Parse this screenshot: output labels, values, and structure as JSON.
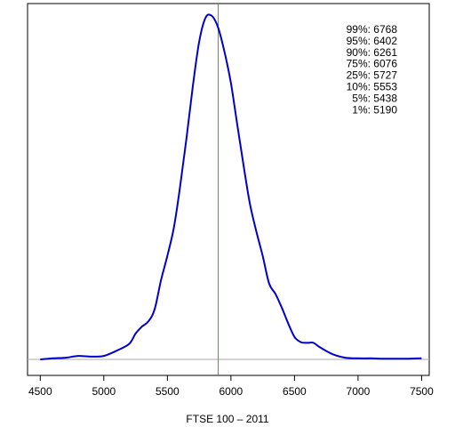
{
  "chart_data": {
    "type": "line",
    "xlabel": "FTSE 100 – 2011",
    "ylabel": "",
    "title": "",
    "xlim": [
      4400,
      7560
    ],
    "ylim": [
      0,
      1.0
    ],
    "x_ticks": [
      4500,
      5000,
      5500,
      6000,
      6500,
      7000,
      7500
    ],
    "x_tick_labels": [
      "4500",
      "5000",
      "5500",
      "6000",
      "6500",
      "7000",
      "7500"
    ],
    "vline": {
      "x": 5900,
      "color": "#00cc00"
    },
    "baseline": {
      "y": 0,
      "color": "#aaaaaa"
    },
    "series": [
      {
        "color": "#0000cc",
        "x": [
          4500,
          4600,
          4700,
          4800,
          4900,
          5000,
          5100,
          5200,
          5250,
          5300,
          5350,
          5400,
          5450,
          5500,
          5550,
          5600,
          5650,
          5700,
          5750,
          5800,
          5850,
          5900,
          5950,
          6000,
          6050,
          6100,
          6150,
          6200,
          6250,
          6300,
          6350,
          6400,
          6450,
          6500,
          6550,
          6600,
          6650,
          6700,
          6800,
          6900,
          7000,
          7100,
          7200,
          7300,
          7400,
          7500
        ],
        "y": [
          0.0,
          0.003,
          0.005,
          0.01,
          0.008,
          0.01,
          0.025,
          0.045,
          0.075,
          0.095,
          0.11,
          0.145,
          0.23,
          0.3,
          0.38,
          0.5,
          0.64,
          0.79,
          0.92,
          0.99,
          0.995,
          0.96,
          0.89,
          0.8,
          0.68,
          0.56,
          0.45,
          0.37,
          0.3,
          0.22,
          0.19,
          0.15,
          0.105,
          0.065,
          0.05,
          0.048,
          0.048,
          0.035,
          0.015,
          0.005,
          0.003,
          0.003,
          0.002,
          0.002,
          0.002,
          0.003
        ]
      }
    ],
    "quantile_legend": {
      "position": "top-right",
      "items": [
        {
          "label": "99%:",
          "value": "6768"
        },
        {
          "label": "95%:",
          "value": "6402"
        },
        {
          "label": "90%:",
          "value": "6261"
        },
        {
          "label": "75%:",
          "value": "6076"
        },
        {
          "label": "25%:",
          "value": "5727"
        },
        {
          "label": "10%:",
          "value": "5553"
        },
        {
          "label": "5%:",
          "value": "5438"
        },
        {
          "label": "1%:",
          "value": "5190"
        }
      ]
    }
  }
}
